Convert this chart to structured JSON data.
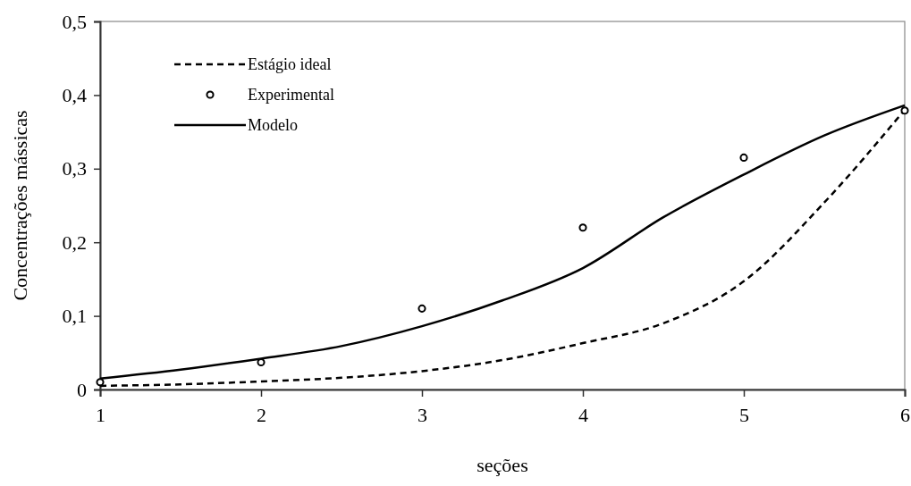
{
  "chart_data": {
    "type": "line",
    "xlabel": "seções",
    "ylabel": "Concentrações mássicas",
    "xlim": [
      1,
      6
    ],
    "xticks": [
      1,
      2,
      3,
      4,
      5,
      6
    ],
    "ylim": [
      0,
      0.5
    ],
    "yticks": [
      {
        "value": 0,
        "label": "0"
      },
      {
        "value": 0.1,
        "label": "0,1"
      },
      {
        "value": 0.2,
        "label": "0,2"
      },
      {
        "value": 0.3,
        "label": "0,3"
      },
      {
        "value": 0.4,
        "label": "0,4"
      },
      {
        "value": 0.5,
        "label": "0,5"
      }
    ],
    "grid": false,
    "legend": "top left",
    "series": [
      {
        "name": "Estágio ideal",
        "line_style": "dashed",
        "color": "#000000",
        "x": [
          1,
          1.5,
          2,
          2.5,
          3,
          3.5,
          4,
          4.5,
          5,
          5.5,
          6
        ],
        "values": [
          0.005,
          0.007,
          0.011,
          0.016,
          0.025,
          0.04,
          0.063,
          0.09,
          0.147,
          0.254,
          0.38
        ]
      },
      {
        "name": "Experimental",
        "type": "scatter",
        "marker": "circle",
        "color": "#000000",
        "x": [
          1,
          2,
          3,
          4,
          5,
          6
        ],
        "values": [
          0.01,
          0.037,
          0.11,
          0.22,
          0.315,
          0.379
        ]
      },
      {
        "name": "Modelo",
        "line_style": "solid",
        "color": "#000000",
        "x": [
          1,
          1.5,
          2,
          2.5,
          3,
          3.5,
          4,
          4.5,
          5,
          5.5,
          6
        ],
        "values": [
          0.015,
          0.027,
          0.042,
          0.059,
          0.086,
          0.121,
          0.165,
          0.234,
          0.292,
          0.345,
          0.386
        ]
      }
    ]
  }
}
